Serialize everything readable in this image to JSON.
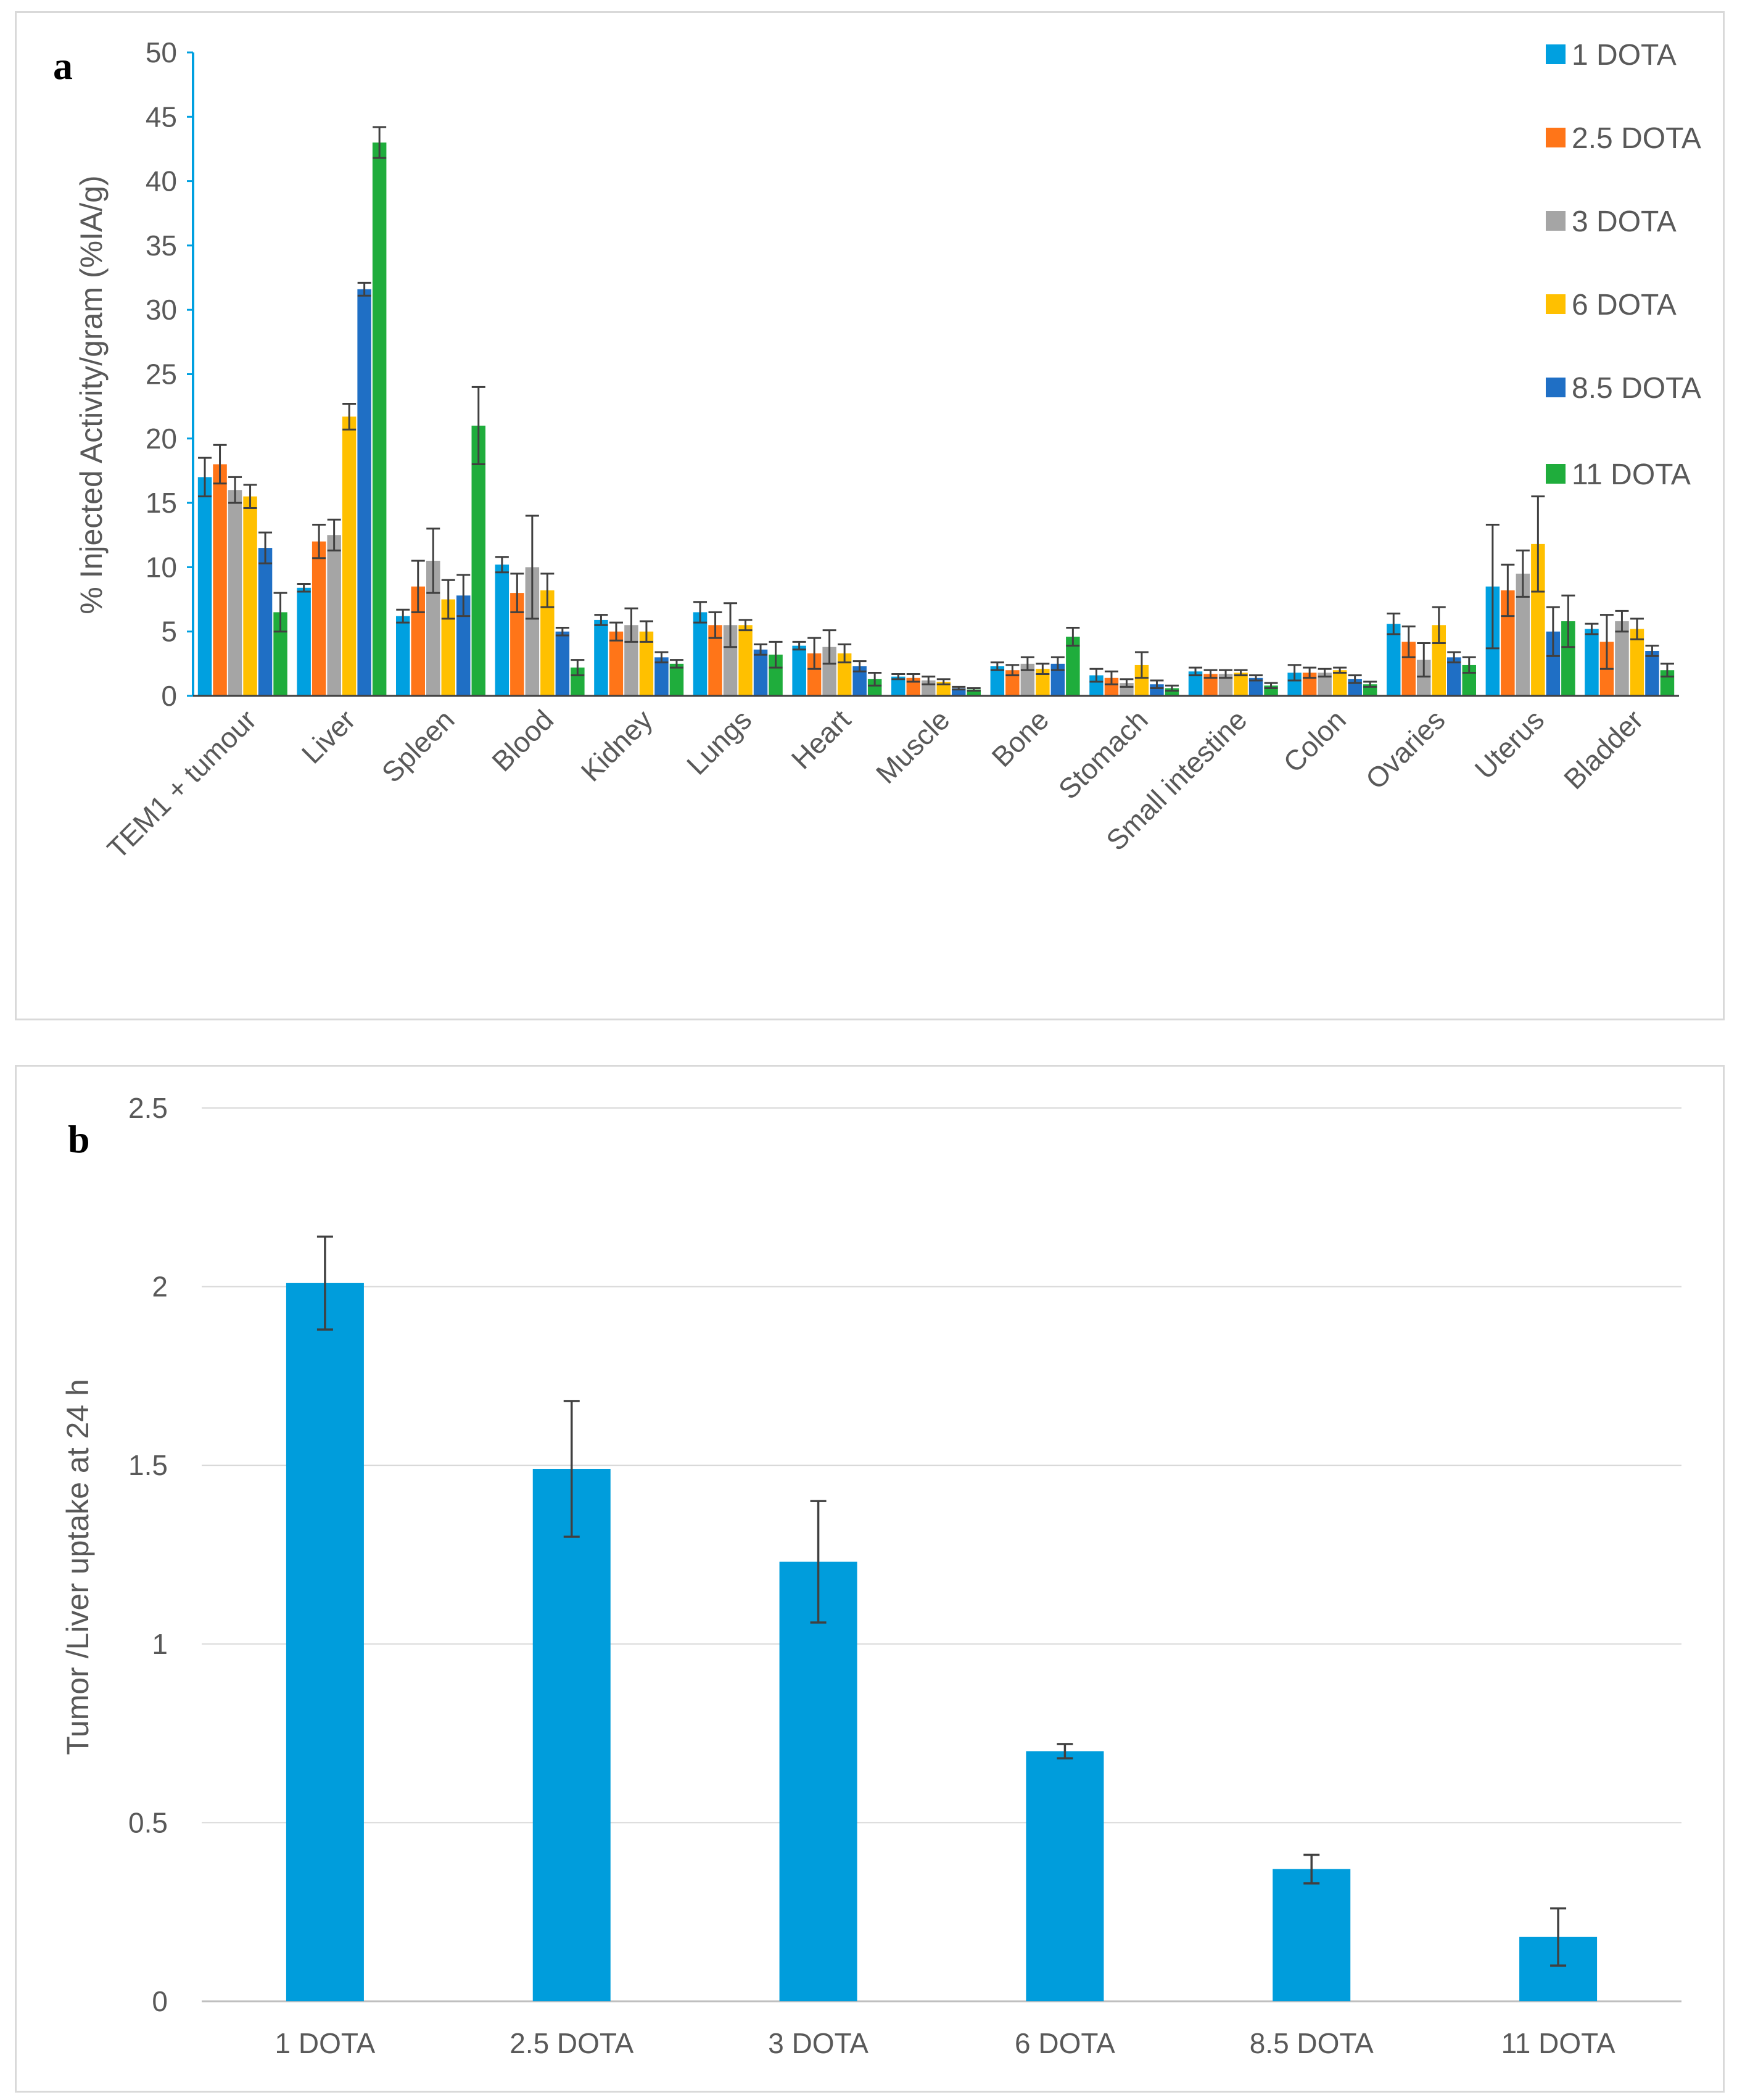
{
  "chart_data": [
    {
      "panel": "a",
      "type": "bar",
      "title": "",
      "xlabel": "",
      "ylabel": "% Injected Activity/gram (%IA/g)",
      "ylim": [
        0,
        50
      ],
      "yticks": [
        0,
        5,
        10,
        15,
        20,
        25,
        30,
        35,
        40,
        45,
        50
      ],
      "grid": false,
      "legend_position": "top-right",
      "categories": [
        "TEM1 + tumour",
        "Liver",
        "Spleen",
        "Blood",
        "Kidney",
        "Lungs",
        "Heart",
        "Muscle",
        "Bone",
        "Stomach",
        "Small intestine",
        "Colon",
        "Ovaries",
        "Uterus",
        "Bladder"
      ],
      "series": [
        {
          "name": "1 DOTA",
          "color": "#00a0e0",
          "values": [
            17,
            8.4,
            6.2,
            10.2,
            5.9,
            6.5,
            3.9,
            1.5,
            2.3,
            1.6,
            1.9,
            1.8,
            5.6,
            8.5,
            5.2
          ],
          "errors": [
            1.5,
            0.3,
            0.5,
            0.6,
            0.4,
            0.8,
            0.3,
            0.2,
            0.3,
            0.5,
            0.3,
            0.6,
            0.8,
            4.8,
            0.4
          ]
        },
        {
          "name": "2.5 DOTA",
          "color": "#ff7518",
          "values": [
            18,
            12,
            8.5,
            8,
            5,
            5.5,
            3.3,
            1.4,
            2,
            1.4,
            1.7,
            1.8,
            4.2,
            8.2,
            4.2
          ],
          "errors": [
            1.5,
            1.3,
            2,
            1.5,
            0.7,
            1,
            1.2,
            0.3,
            0.4,
            0.5,
            0.3,
            0.4,
            1.2,
            2,
            2.1
          ]
        },
        {
          "name": "3 DOTA",
          "color": "#a5a5a5",
          "values": [
            16,
            12.5,
            10.5,
            10,
            5.5,
            5.5,
            3.8,
            1.2,
            2.5,
            1,
            1.7,
            1.8,
            2.8,
            9.5,
            5.8
          ],
          "errors": [
            1,
            1.2,
            2.5,
            4,
            1.3,
            1.7,
            1.3,
            0.3,
            0.5,
            0.3,
            0.3,
            0.3,
            1.3,
            1.8,
            0.8
          ]
        },
        {
          "name": "6 DOTA",
          "color": "#ffc000",
          "values": [
            15.5,
            21.7,
            7.5,
            8.2,
            5,
            5.5,
            3.3,
            1.1,
            2.1,
            2.4,
            1.8,
            2,
            5.5,
            11.8,
            5.2
          ],
          "errors": [
            0.9,
            1,
            1.5,
            1.3,
            0.8,
            0.4,
            0.7,
            0.2,
            0.4,
            1,
            0.2,
            0.2,
            1.4,
            3.7,
            0.8
          ]
        },
        {
          "name": "8.5 DOTA",
          "color": "#1f6fc5",
          "values": [
            11.5,
            31.6,
            7.8,
            5,
            3,
            3.6,
            2.3,
            0.6,
            2.5,
            0.9,
            1.4,
            1.3,
            3,
            5,
            3.5
          ],
          "errors": [
            1.2,
            0.5,
            1.6,
            0.3,
            0.4,
            0.4,
            0.4,
            0.1,
            0.5,
            0.3,
            0.2,
            0.3,
            0.4,
            1.9,
            0.4
          ]
        },
        {
          "name": "11 DOTA",
          "color": "#1fad3c",
          "values": [
            6.5,
            43,
            21,
            2.2,
            2.5,
            3.2,
            1.3,
            0.5,
            4.6,
            0.6,
            0.8,
            0.9,
            2.4,
            5.8,
            2
          ],
          "errors": [
            1.5,
            1.2,
            3,
            0.6,
            0.3,
            1,
            0.5,
            0.1,
            0.7,
            0.2,
            0.2,
            0.2,
            0.6,
            2,
            0.5
          ]
        }
      ]
    },
    {
      "panel": "b",
      "type": "bar",
      "title": "",
      "xlabel": "",
      "ylabel": "Tumor /Liver uptake at 24 h",
      "ylim": [
        0,
        2.5
      ],
      "yticks": [
        "0",
        "0.5",
        "1",
        "1.5",
        "2",
        "2.5"
      ],
      "grid": true,
      "categories": [
        "1 DOTA",
        "2.5 DOTA",
        "3 DOTA",
        "6 DOTA",
        "8.5 DOTA",
        "11 DOTA"
      ],
      "color": "#009ddc",
      "values": [
        2.01,
        1.49,
        1.23,
        0.7,
        0.37,
        0.18
      ],
      "errors": [
        0.13,
        0.19,
        0.17,
        0.02,
        0.04,
        0.08
      ]
    }
  ]
}
